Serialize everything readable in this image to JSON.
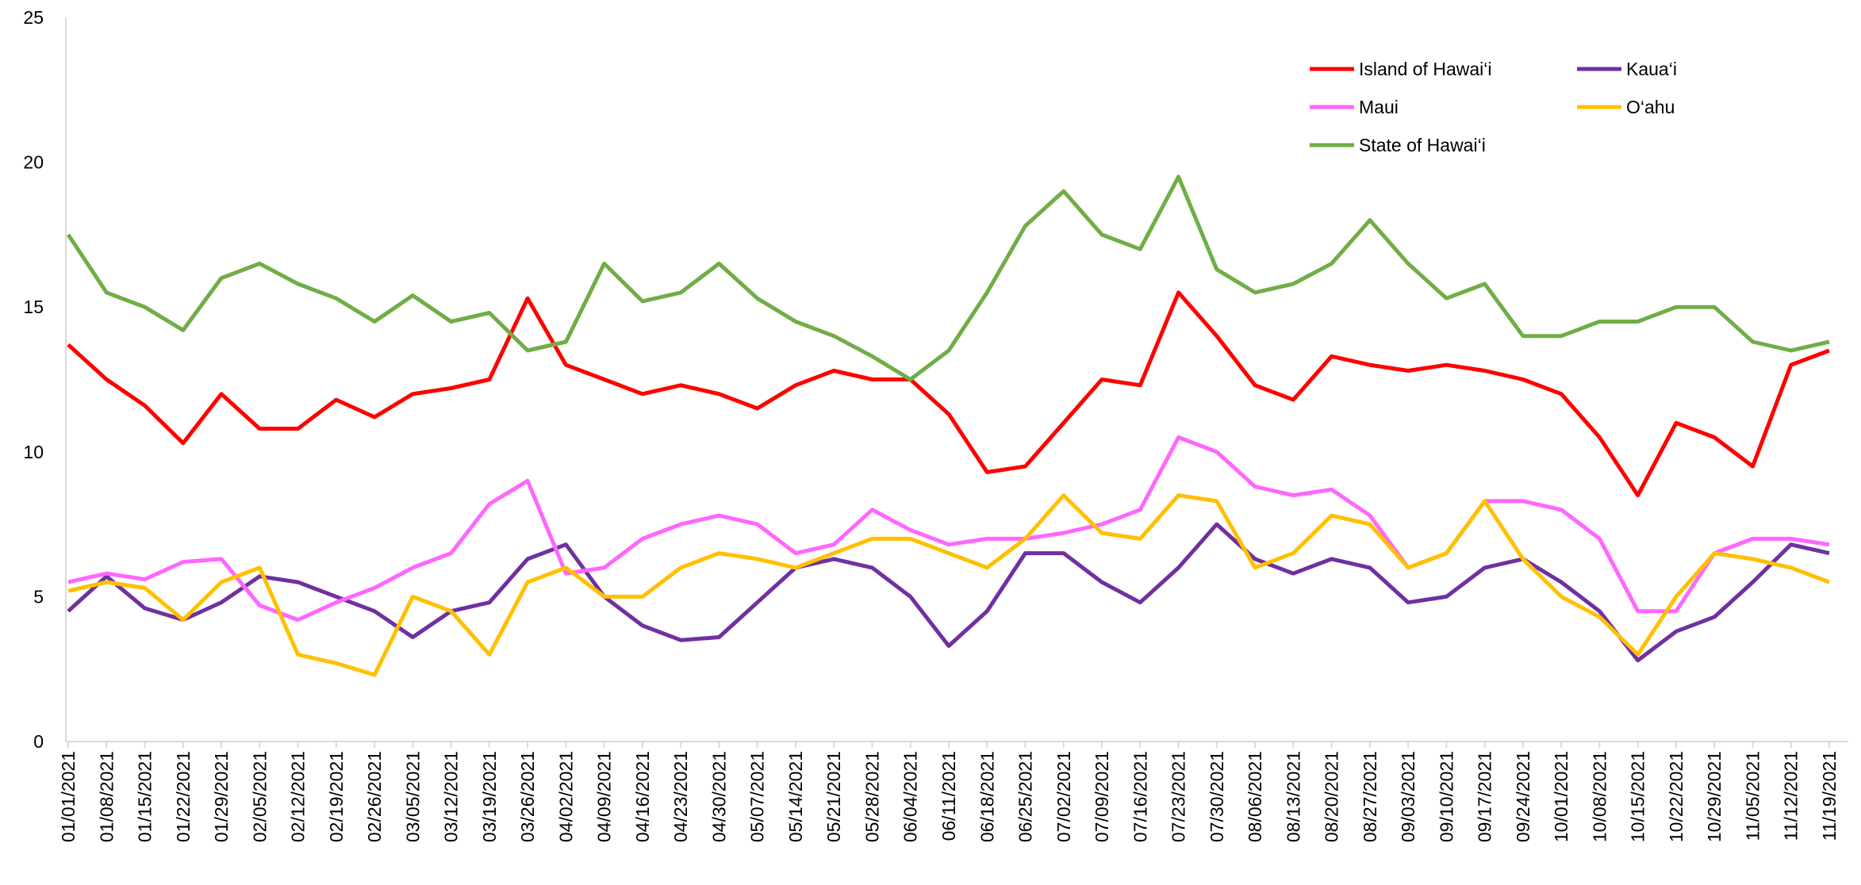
{
  "chart_data": {
    "type": "line",
    "categories": [
      "01/01/2021",
      "01/08/2021",
      "01/15/2021",
      "01/22/2021",
      "01/29/2021",
      "02/05/2021",
      "02/12/2021",
      "02/19/2021",
      "02/26/2021",
      "03/05/2021",
      "03/12/2021",
      "03/19/2021",
      "03/26/2021",
      "04/02/2021",
      "04/09/2021",
      "04/16/2021",
      "04/23/2021",
      "04/30/2021",
      "05/07/2021",
      "05/14/2021",
      "05/21/2021",
      "05/28/2021",
      "06/04/2021",
      "06/11/2021",
      "06/18/2021",
      "06/25/2021",
      "07/02/2021",
      "07/09/2021",
      "07/16/2021",
      "07/23/2021",
      "07/30/2021",
      "08/06/2021",
      "08/13/2021",
      "08/20/2021",
      "08/27/2021",
      "09/03/2021",
      "09/10/2021",
      "09/17/2021",
      "09/24/2021",
      "10/01/2021",
      "10/08/2021",
      "10/15/2021",
      "10/22/2021",
      "10/29/2021",
      "11/05/2021",
      "11/12/2021",
      "11/19/2021"
    ],
    "series": [
      {
        "name": "Island of Hawai‘i",
        "color": "#ff0000",
        "values": [
          13.7,
          12.5,
          11.6,
          10.3,
          12.0,
          10.8,
          10.8,
          11.8,
          11.2,
          12.0,
          12.2,
          12.5,
          15.3,
          13.0,
          12.5,
          12.0,
          12.3,
          12.0,
          11.5,
          12.3,
          12.8,
          12.5,
          12.5,
          11.3,
          9.3,
          9.5,
          11.0,
          12.5,
          12.3,
          15.5,
          14.0,
          12.3,
          11.8,
          13.3,
          13.0,
          12.8,
          13.0,
          12.8,
          12.5,
          12.0,
          10.5,
          8.5,
          11.0,
          10.5,
          9.5,
          13.0,
          13.5
        ]
      },
      {
        "name": "Kaua‘i",
        "color": "#7030a0",
        "values": [
          4.5,
          5.7,
          4.6,
          4.2,
          4.8,
          5.7,
          5.5,
          5.0,
          4.5,
          3.6,
          4.5,
          4.8,
          6.3,
          6.8,
          5.0,
          4.0,
          3.5,
          3.6,
          4.8,
          6.0,
          6.3,
          6.0,
          5.0,
          3.3,
          4.5,
          6.5,
          6.5,
          5.5,
          4.8,
          6.0,
          7.5,
          6.3,
          5.8,
          6.3,
          6.0,
          4.8,
          5.0,
          6.0,
          6.3,
          5.5,
          4.5,
          2.8,
          3.8,
          4.3,
          5.5,
          6.8,
          6.5
        ]
      },
      {
        "name": "Maui",
        "color": "#ff66ff",
        "values": [
          5.5,
          5.8,
          5.6,
          6.2,
          6.3,
          4.7,
          4.2,
          4.8,
          5.3,
          6.0,
          6.5,
          8.2,
          9.0,
          5.8,
          6.0,
          7.0,
          7.5,
          7.8,
          7.5,
          6.5,
          6.8,
          8.0,
          7.3,
          6.8,
          7.0,
          7.0,
          7.2,
          7.5,
          8.0,
          10.5,
          10.0,
          8.8,
          8.5,
          8.7,
          7.8,
          6.0,
          6.5,
          8.3,
          8.3,
          8.0,
          7.0,
          4.5,
          4.5,
          6.5,
          7.0,
          7.0,
          6.8
        ]
      },
      {
        "name": "O‘ahu",
        "color": "#ffc000",
        "values": [
          5.2,
          5.5,
          5.3,
          4.2,
          5.5,
          6.0,
          3.0,
          2.7,
          2.3,
          5.0,
          4.5,
          3.0,
          5.5,
          6.0,
          5.0,
          5.0,
          6.0,
          6.5,
          6.3,
          6.0,
          6.5,
          7.0,
          7.0,
          6.5,
          6.0,
          7.0,
          8.5,
          7.2,
          7.0,
          8.5,
          8.3,
          6.0,
          6.5,
          7.8,
          7.5,
          6.0,
          6.5,
          8.3,
          6.3,
          5.0,
          4.3,
          3.0,
          5.0,
          6.5,
          6.3,
          6.0,
          5.5
        ]
      },
      {
        "name": "State of Hawai‘i",
        "color": "#70ad47",
        "values": [
          17.5,
          15.5,
          15.0,
          14.2,
          16.0,
          16.5,
          15.8,
          15.3,
          14.5,
          15.4,
          14.5,
          14.8,
          13.5,
          13.8,
          16.5,
          15.2,
          15.5,
          16.5,
          15.3,
          14.5,
          14.0,
          13.3,
          12.5,
          13.5,
          15.5,
          17.8,
          19.0,
          17.5,
          17.0,
          19.5,
          16.3,
          15.5,
          15.8,
          16.5,
          18.0,
          16.5,
          15.3,
          15.8,
          14.0,
          14.0,
          14.5,
          14.5,
          15.0,
          15.0,
          13.8,
          13.5,
          13.8
        ]
      }
    ],
    "ylim": [
      0,
      25
    ],
    "yticks": [
      0,
      5,
      10,
      15,
      20,
      25
    ],
    "grid": false,
    "legend": "top-right"
  }
}
